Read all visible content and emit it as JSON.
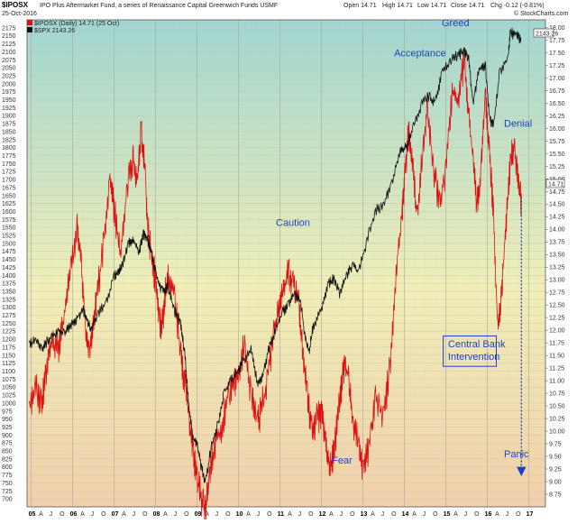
{
  "header": {
    "symbol": "$IPOSX",
    "fund_name": "IPO Plus Aftermarket Fund, a series of Renaissance Capital Greenwich Funds USMF",
    "date": "25-Oct-2016",
    "open": "Open 14.71",
    "high": "High 14.71",
    "low": "Low 14.71",
    "close": "Close 14.71",
    "chg": "Chg -0.12 (-0.81%)",
    "watermark": "© StockCharts.com",
    "legend_iposx": "$IPOSX (Daily) 14.71 (25 Oct)",
    "legend_spx": "$SPX 2143.26",
    "last_spx": "2143.26",
    "last_iposx": "14.71"
  },
  "colors": {
    "iposx": "#dd1111",
    "spx": "#111111",
    "annotation": "#1f3fc8",
    "bg_top": "#9fd6d2",
    "bg_mid": "#f0eeb6",
    "bg_bottom": "#f1cfaa"
  },
  "chart_data": {
    "type": "line",
    "title": "$IPOSX",
    "ylim_left": [
      675,
      2200
    ],
    "ylim_right": [
      8.5,
      18.15
    ],
    "left_ticks": [
      "700",
      "725",
      "750",
      "775",
      "800",
      "825",
      "850",
      "875",
      "900",
      "925",
      "950",
      "975",
      "1000",
      "1025",
      "1050",
      "1075",
      "1100",
      "1125",
      "1150",
      "1175",
      "1200",
      "1225",
      "1250",
      "1275",
      "1300",
      "1325",
      "1350",
      "1375",
      "1400",
      "1425",
      "1450",
      "1475",
      "1500",
      "1525",
      "1550",
      "1575",
      "1600",
      "1625",
      "1650",
      "1675",
      "1700",
      "1725",
      "1750",
      "1775",
      "1800",
      "1825",
      "1850",
      "1875",
      "1900",
      "1925",
      "1950",
      "1975",
      "2000",
      "2025",
      "2050",
      "2075",
      "2100",
      "2125",
      "2150",
      "2175"
    ],
    "right_ticks": [
      "8.75",
      "9.00",
      "9.25",
      "9.50",
      "9.75",
      "10.00",
      "10.25",
      "10.50",
      "10.75",
      "11.00",
      "11.25",
      "11.50",
      "11.75",
      "12.00",
      "12.25",
      "12.50",
      "12.75",
      "13.00",
      "13.25",
      "13.50",
      "13.75",
      "14.00",
      "14.25",
      "14.50",
      "14.75",
      "15.00",
      "15.25",
      "15.50",
      "15.75",
      "16.00",
      "16.25",
      "16.50",
      "16.75",
      "17.00",
      "17.25",
      "17.50",
      "17.75",
      "18.00"
    ],
    "x_ticks": [
      {
        "label": "05",
        "t": 2005.0,
        "year": true
      },
      {
        "label": "A",
        "t": 2005.25
      },
      {
        "label": "J",
        "t": 2005.5
      },
      {
        "label": "O",
        "t": 2005.75
      },
      {
        "label": "06",
        "t": 2006.0,
        "year": true
      },
      {
        "label": "A",
        "t": 2006.25
      },
      {
        "label": "J",
        "t": 2006.5
      },
      {
        "label": "O",
        "t": 2006.75
      },
      {
        "label": "07",
        "t": 2007.0,
        "year": true
      },
      {
        "label": "A",
        "t": 2007.25
      },
      {
        "label": "J",
        "t": 2007.5
      },
      {
        "label": "O",
        "t": 2007.75
      },
      {
        "label": "08",
        "t": 2008.0,
        "year": true
      },
      {
        "label": "A",
        "t": 2008.25
      },
      {
        "label": "J",
        "t": 2008.5
      },
      {
        "label": "O",
        "t": 2008.75
      },
      {
        "label": "09",
        "t": 2009.0,
        "year": true
      },
      {
        "label": "A",
        "t": 2009.25
      },
      {
        "label": "J",
        "t": 2009.5
      },
      {
        "label": "O",
        "t": 2009.75
      },
      {
        "label": "10",
        "t": 2010.0,
        "year": true
      },
      {
        "label": "A",
        "t": 2010.25
      },
      {
        "label": "J",
        "t": 2010.5
      },
      {
        "label": "O",
        "t": 2010.75
      },
      {
        "label": "11",
        "t": 2011.0,
        "year": true
      },
      {
        "label": "A",
        "t": 2011.25
      },
      {
        "label": "J",
        "t": 2011.5
      },
      {
        "label": "O",
        "t": 2011.75
      },
      {
        "label": "12",
        "t": 2012.0,
        "year": true
      },
      {
        "label": "A",
        "t": 2012.25
      },
      {
        "label": "J",
        "t": 2012.5
      },
      {
        "label": "O",
        "t": 2012.75
      },
      {
        "label": "13",
        "t": 2013.0,
        "year": true
      },
      {
        "label": "A",
        "t": 2013.25
      },
      {
        "label": "J",
        "t": 2013.5
      },
      {
        "label": "O",
        "t": 2013.75
      },
      {
        "label": "14",
        "t": 2014.0,
        "year": true
      },
      {
        "label": "A",
        "t": 2014.25
      },
      {
        "label": "J",
        "t": 2014.5
      },
      {
        "label": "O",
        "t": 2014.75
      },
      {
        "label": "15",
        "t": 2015.0,
        "year": true
      },
      {
        "label": "A",
        "t": 2015.25
      },
      {
        "label": "J",
        "t": 2015.5
      },
      {
        "label": "O",
        "t": 2015.75
      },
      {
        "label": "16",
        "t": 2016.0,
        "year": true
      },
      {
        "label": "A",
        "t": 2016.25
      },
      {
        "label": "J",
        "t": 2016.5
      },
      {
        "label": "O",
        "t": 2016.75
      },
      {
        "label": "17",
        "t": 2017.0,
        "year": true
      }
    ],
    "xlim": [
      2004.9,
      2017.4
    ],
    "series": [
      {
        "name": "$IPOSX (Daily) 14.71 (25 Oct)",
        "axis": "right",
        "t": [
          2004.95,
          2005.1,
          2005.25,
          2005.35,
          2005.5,
          2005.65,
          2005.8,
          2005.95,
          2006.1,
          2006.2,
          2006.3,
          2006.4,
          2006.5,
          2006.6,
          2006.75,
          2006.9,
          2007.0,
          2007.15,
          2007.3,
          2007.45,
          2007.55,
          2007.65,
          2007.75,
          2007.8,
          2007.9,
          2008.0,
          2008.1,
          2008.2,
          2008.3,
          2008.45,
          2008.6,
          2008.7,
          2008.8,
          2008.9,
          2009.0,
          2009.1,
          2009.2,
          2009.3,
          2009.45,
          2009.6,
          2009.75,
          2009.9,
          2010.0,
          2010.15,
          2010.3,
          2010.45,
          2010.55,
          2010.7,
          2010.85,
          2011.0,
          2011.1,
          2011.2,
          2011.3,
          2011.45,
          2011.55,
          2011.65,
          2011.75,
          2011.9,
          2012.0,
          2012.1,
          2012.2,
          2012.3,
          2012.45,
          2012.55,
          2012.65,
          2012.75,
          2012.9,
          2013.0,
          2013.15,
          2013.3,
          2013.5,
          2013.65,
          2013.8,
          2013.95,
          2014.0,
          2014.1,
          2014.2,
          2014.3,
          2014.45,
          2014.55,
          2014.7,
          2014.85,
          2015.0,
          2015.15,
          2015.3,
          2015.45,
          2015.55,
          2015.65,
          2015.75,
          2015.85,
          2015.95,
          2016.05,
          2016.15,
          2016.25,
          2016.35,
          2016.45,
          2016.55,
          2016.65,
          2016.75,
          2016.82
        ],
        "values": [
          10.6,
          11.1,
          10.7,
          11.3,
          11.9,
          11.8,
          12.4,
          13.4,
          14.2,
          13.6,
          12.2,
          11.7,
          12.3,
          13.0,
          13.9,
          15.1,
          14.6,
          13.6,
          14.9,
          15.6,
          15.1,
          16.1,
          15.3,
          14.3,
          13.6,
          13.2,
          12.2,
          12.6,
          13.3,
          12.9,
          11.7,
          11.2,
          10.5,
          9.7,
          9.3,
          8.8,
          8.6,
          9.3,
          10.0,
          10.2,
          10.9,
          11.2,
          11.3,
          11.9,
          10.9,
          10.3,
          10.6,
          11.2,
          12.2,
          12.7,
          13.0,
          13.3,
          13.1,
          12.8,
          11.6,
          11.0,
          10.2,
          10.4,
          10.6,
          10.0,
          9.4,
          9.8,
          10.9,
          11.5,
          11.3,
          10.3,
          9.9,
          9.4,
          9.8,
          10.9,
          10.5,
          11.4,
          13.3,
          14.6,
          15.1,
          16.1,
          15.4,
          14.4,
          15.7,
          16.7,
          15.3,
          14.7,
          15.4,
          16.9,
          16.7,
          17.6,
          16.4,
          15.6,
          14.6,
          15.4,
          16.8,
          15.7,
          14.4,
          12.2,
          13.0,
          14.3,
          15.5,
          15.8,
          15.1,
          14.71
        ]
      },
      {
        "name": "$SPX 2143.26",
        "axis": "left",
        "t": [
          2004.95,
          2005.1,
          2005.25,
          2005.35,
          2005.5,
          2005.65,
          2005.8,
          2005.95,
          2006.1,
          2006.25,
          2006.35,
          2006.45,
          2006.6,
          2006.8,
          2007.0,
          2007.1,
          2007.2,
          2007.35,
          2007.45,
          2007.6,
          2007.7,
          2007.8,
          2007.9,
          2008.0,
          2008.15,
          2008.3,
          2008.45,
          2008.6,
          2008.7,
          2008.8,
          2008.9,
          2009.0,
          2009.1,
          2009.2,
          2009.35,
          2009.5,
          2009.65,
          2009.8,
          2010.0,
          2010.1,
          2010.3,
          2010.45,
          2010.6,
          2010.75,
          2010.9,
          2011.05,
          2011.2,
          2011.35,
          2011.5,
          2011.6,
          2011.7,
          2011.8,
          2012.0,
          2012.15,
          2012.3,
          2012.45,
          2012.6,
          2012.75,
          2012.9,
          2013.1,
          2013.3,
          2013.5,
          2013.7,
          2013.9,
          2014.05,
          2014.2,
          2014.4,
          2014.6,
          2014.75,
          2014.9,
          2015.1,
          2015.3,
          2015.45,
          2015.55,
          2015.65,
          2015.8,
          2015.95,
          2016.05,
          2016.15,
          2016.3,
          2016.5,
          2016.55,
          2016.7,
          2016.82
        ],
        "values": [
          1190,
          1205,
          1180,
          1195,
          1220,
          1235,
          1225,
          1250,
          1275,
          1300,
          1265,
          1240,
          1285,
          1320,
          1410,
          1420,
          1440,
          1510,
          1520,
          1480,
          1540,
          1525,
          1480,
          1420,
          1360,
          1370,
          1300,
          1260,
          1170,
          1000,
          900,
          880,
          810,
          760,
          880,
          940,
          1040,
          1080,
          1110,
          1140,
          1180,
          1070,
          1100,
          1190,
          1240,
          1290,
          1320,
          1350,
          1320,
          1220,
          1170,
          1250,
          1300,
          1380,
          1400,
          1350,
          1410,
          1440,
          1420,
          1520,
          1610,
          1630,
          1700,
          1800,
          1810,
          1870,
          1940,
          1970,
          1950,
          2040,
          2080,
          2100,
          2110,
          2090,
          1950,
          2050,
          2070,
          1900,
          1880,
          2050,
          2090,
          2170,
          2160,
          2143
        ]
      }
    ],
    "annotations": [
      {
        "text": "Greed",
        "t": 2014.9,
        "v": 2180
      },
      {
        "text": "Acceptance",
        "t": 2013.75,
        "v": 2085
      },
      {
        "text": "Denial",
        "t": 2016.4,
        "v": 1865
      },
      {
        "text": "Caution",
        "t": 2010.9,
        "v": 1555
      },
      {
        "text": "Central Bank",
        "t": 2015.05,
        "v": 1175
      },
      {
        "text": "Intervention",
        "t": 2015.05,
        "v": 1135
      },
      {
        "text": "Fear",
        "t": 2012.25,
        "v": 810
      },
      {
        "text": "Panic",
        "t": 2016.4,
        "v": 830
      }
    ],
    "panic_arrow": {
      "t": 2016.82,
      "from": 14.71,
      "to": 9.2
    },
    "intervention_box": {
      "t0": 2015.0,
      "t1": 2016.15,
      "v0": 1115,
      "v1": 1210
    }
  }
}
